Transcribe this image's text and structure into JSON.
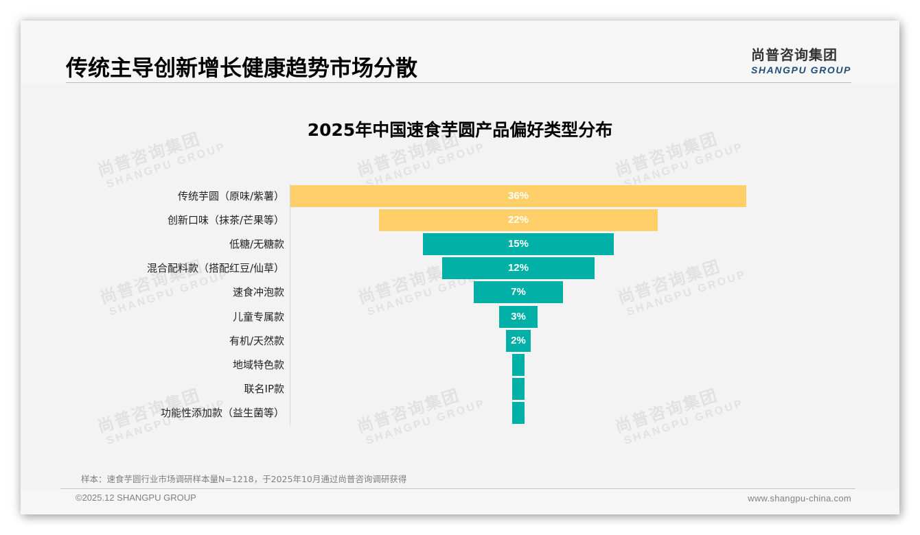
{
  "header": {
    "title": "传统主导创新增长健康趋势市场分散",
    "logo_cn": "尚普咨询集团",
    "logo_en": "SHANGPU GROUP"
  },
  "watermark": {
    "cn": "尚普咨询集团",
    "en": "SHANGPU GROUP"
  },
  "colors": {
    "highlight": "#FFCF6A",
    "primary": "#00B0A6",
    "background": "#F3F3F3",
    "logo_blue": "#1F4E79"
  },
  "chart_data": {
    "type": "bar",
    "subtype": "funnel (centered horizontal bars)",
    "title": "2025年中国速食芋圆产品偏好类型分布",
    "xlabel": "",
    "ylabel": "",
    "unit": "%",
    "categories": [
      "传统芋圆（原味/紫薯）",
      "创新口味（抹茶/芒果等）",
      "低糖/无糖款",
      "混合配料款（搭配红豆/仙草）",
      "速食冲泡款",
      "儿童专属款",
      "有机/天然款",
      "地域特色款",
      "联名IP款",
      "功能性添加款（益生菌等）"
    ],
    "values": [
      36,
      22,
      15,
      12,
      7,
      3,
      2,
      1,
      1,
      1
    ],
    "labels": [
      "36%",
      "22%",
      "15%",
      "12%",
      "7%",
      "3%",
      "2%",
      "",
      "",
      ""
    ],
    "bar_colors": [
      "#FFCF6A",
      "#FFCF6A",
      "#00B0A6",
      "#00B0A6",
      "#00B0A6",
      "#00B0A6",
      "#00B0A6",
      "#00B0A6",
      "#00B0A6",
      "#00B0A6"
    ],
    "grid": false,
    "legend": "none",
    "note": "last three categories have unlabeled bars of roughly 1% each"
  },
  "footer": {
    "note": "样本：速食芋圆行业市场调研样本量N=1218，于2025年10月通过尚普咨询调研获得",
    "copyright": "©2025.12 SHANGPU GROUP",
    "website": "www.shangpu-china.com"
  }
}
